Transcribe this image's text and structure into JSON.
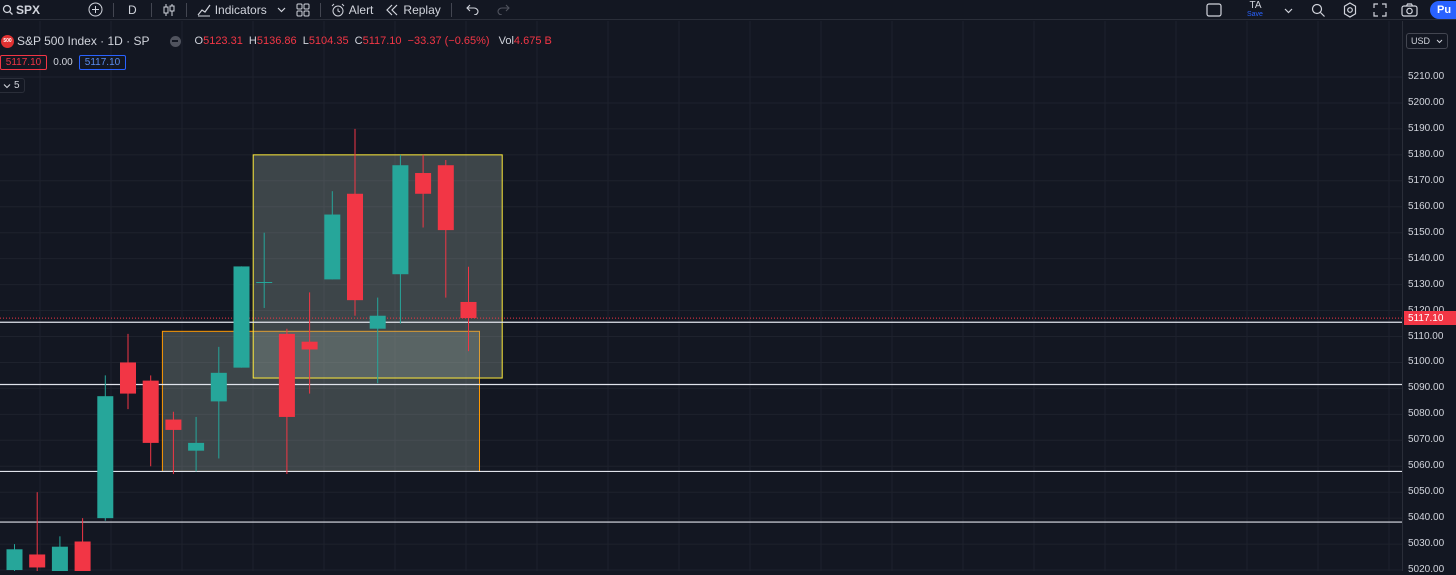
{
  "toolbar": {
    "symbol": "SPX",
    "interval": "D",
    "indicators_label": "Indicators",
    "alert_label": "Alert",
    "replay_label": "Replay",
    "layout_name": "TA",
    "layout_save": "Save",
    "publish_label": "Pu"
  },
  "legend": {
    "logo_text": "500",
    "title": "S&P 500 Index · 1D · SP",
    "open_label": "O",
    "open": "5123.31",
    "high_label": "H",
    "high": "5136.86",
    "low_label": "L",
    "low": "5104.35",
    "close_label": "C",
    "close": "5117.10",
    "change": "−33.37 (−0.65%)",
    "vol_label": "Vol",
    "vol": "4.675 B"
  },
  "quote": {
    "bid": "5117.10",
    "spread": "0.00",
    "ask": "5117.10"
  },
  "indicator_count": "5",
  "currency": "USD",
  "current_price": 5117.1,
  "current_price_label": "5117.10",
  "price_axis": {
    "min": 5020,
    "max": 5210,
    "step": 10
  },
  "colors": {
    "up": "#26a69a",
    "down": "#f23645",
    "background": "#131722"
  },
  "chart_data": {
    "type": "candlestick",
    "symbol": "SPX",
    "candles": [
      {
        "o": 5020,
        "h": 5030,
        "l": 5014,
        "c": 5028
      },
      {
        "o": 5026,
        "h": 5050,
        "l": 5015,
        "c": 5021
      },
      {
        "o": 5017,
        "h": 5033,
        "l": 5015,
        "c": 5029
      },
      {
        "o": 5031,
        "h": 5040,
        "l": 5015,
        "c": 5018
      },
      {
        "o": 5040,
        "h": 5095,
        "l": 5039,
        "c": 5087
      },
      {
        "o": 5100,
        "h": 5111,
        "l": 5082,
        "c": 5088
      },
      {
        "o": 5093,
        "h": 5095,
        "l": 5060,
        "c": 5069
      },
      {
        "o": 5078,
        "h": 5081,
        "l": 5057,
        "c": 5074
      },
      {
        "o": 5066,
        "h": 5079,
        "l": 5058,
        "c": 5069
      },
      {
        "o": 5085,
        "h": 5106,
        "l": 5063,
        "c": 5096
      },
      {
        "o": 5098,
        "h": 5137,
        "l": 5098,
        "c": 5137
      },
      {
        "o": 5131,
        "h": 5150,
        "l": 5121,
        "c": 5131
      },
      {
        "o": 5111,
        "h": 5113,
        "l": 5057,
        "c": 5079
      },
      {
        "o": 5108,
        "h": 5127,
        "l": 5088,
        "c": 5105
      },
      {
        "o": 5132,
        "h": 5166,
        "l": 5132,
        "c": 5157
      },
      {
        "o": 5165,
        "h": 5190,
        "l": 5118,
        "c": 5124
      },
      {
        "o": 5113,
        "h": 5125,
        "l": 5092,
        "c": 5118
      },
      {
        "o": 5134,
        "h": 5180,
        "l": 5115,
        "c": 5176
      },
      {
        "o": 5173,
        "h": 5180,
        "l": 5152,
        "c": 5165
      },
      {
        "o": 5176,
        "h": 5178,
        "l": 5125,
        "c": 5151
      },
      {
        "o": 5123.31,
        "h": 5136.86,
        "l": 5104.35,
        "c": 5117.1
      }
    ],
    "horizontal_lines": [
      5115.5,
      5091.5,
      5058,
      5038.5
    ],
    "zones": [
      {
        "from_bar": 7,
        "to_bar": 20,
        "top": 5112,
        "bottom": 5058,
        "color": "#ff9800"
      },
      {
        "from_bar": 11,
        "to_bar": 21,
        "top": 5180,
        "bottom": 5094,
        "color": "#ffeb3b"
      }
    ]
  }
}
